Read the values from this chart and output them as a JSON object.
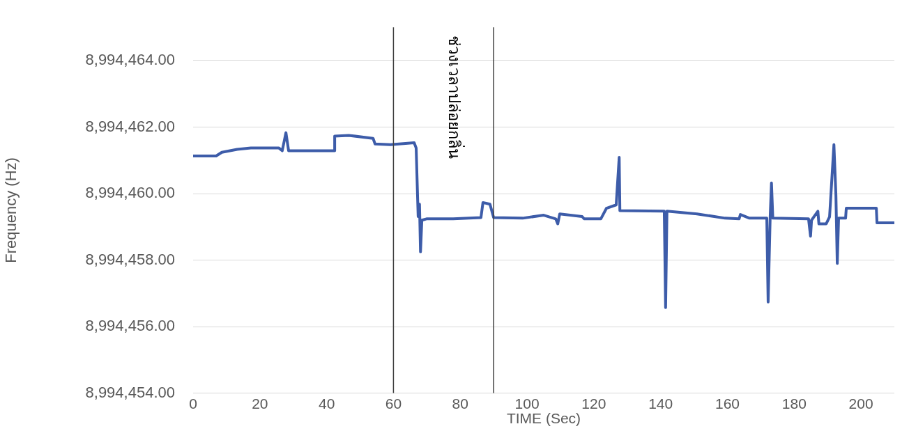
{
  "chart_data": {
    "type": "line",
    "xlabel": "TIME (Sec)",
    "ylabel": "Frequency (Hz)",
    "x": [
      0,
      6.9,
      8.6,
      13.2,
      17.3,
      25.7,
      26.7,
      27.8,
      28.6,
      42.4,
      42.4,
      46.6,
      53.9,
      54.5,
      59.1,
      66.2,
      66.8,
      67.4,
      67.8,
      68.1,
      68.5,
      69.9,
      77.9,
      86.2,
      86.8,
      88.9,
      90.0,
      98.7,
      105.0,
      108.6,
      109.2,
      109.8,
      116.5,
      117.1,
      122.1,
      123.8,
      126.7,
      127.6,
      127.8,
      141.1,
      141.5,
      141.9,
      150.9,
      159.3,
      163.5,
      163.9,
      166.6,
      171.8,
      172.2,
      172.8,
      173.2,
      173.6,
      184.3,
      184.9,
      185.2,
      187.1,
      187.4,
      189.6,
      190.6,
      191.9,
      192.5,
      192.9,
      193.3,
      195.4,
      195.6,
      204.6,
      204.8,
      210
    ],
    "series": [
      {
        "color": "#3d5ca9",
        "values": [
          8994461.13,
          8994461.13,
          8994461.24,
          8994461.33,
          8994461.37,
          8994461.37,
          8994461.29,
          8994461.83,
          8994461.29,
          8994461.29,
          8994461.73,
          8994461.75,
          8994461.66,
          8994461.49,
          8994461.47,
          8994461.53,
          8994461.37,
          8994459.31,
          8994459.68,
          8994458.25,
          8994459.2,
          8994459.24,
          8994459.24,
          8994459.28,
          8994459.73,
          8994459.68,
          8994459.28,
          8994459.26,
          8994459.35,
          8994459.24,
          8994459.09,
          8994459.39,
          8994459.31,
          8994459.24,
          8994459.24,
          8994459.56,
          8994459.66,
          8994461.09,
          8994459.49,
          8994459.47,
          8994456.57,
          8994459.47,
          8994459.39,
          8994459.26,
          8994459.24,
          8994459.37,
          8994459.26,
          8994459.26,
          8994456.74,
          8994459.26,
          8994460.32,
          8994459.26,
          8994459.24,
          8994458.72,
          8994459.2,
          8994459.47,
          8994459.09,
          8994459.09,
          8994459.3,
          8994461.47,
          8994459.94,
          8994457.9,
          8994459.26,
          8994459.26,
          8994459.56,
          8994459.56,
          8994459.12,
          8994459.12
        ]
      }
    ],
    "xlim": [
      0,
      210
    ],
    "xticks": [
      0,
      20,
      40,
      60,
      80,
      100,
      120,
      140,
      160,
      180,
      200
    ],
    "ylim": [
      8994454,
      8994465
    ],
    "yticks": [
      {
        "value": 8994454,
        "label": "8,994,454.00"
      },
      {
        "value": 8994456,
        "label": "8,994,456.00"
      },
      {
        "value": 8994458,
        "label": "8,994,458.00"
      },
      {
        "value": 8994460,
        "label": "8,994,460.00"
      },
      {
        "value": 8994462,
        "label": "8,994,462.00"
      },
      {
        "value": 8994464,
        "label": "8,994,464.00"
      }
    ],
    "ref_lines": [
      {
        "axis": "x",
        "value": 60,
        "color": "#404040"
      },
      {
        "axis": "x",
        "value": 90,
        "label": "ช่วงเวลาปล่อยกลิ่น",
        "color": "#404040"
      }
    ],
    "grid": "y",
    "legend": false,
    "marker": "none",
    "line_style": "solid"
  }
}
